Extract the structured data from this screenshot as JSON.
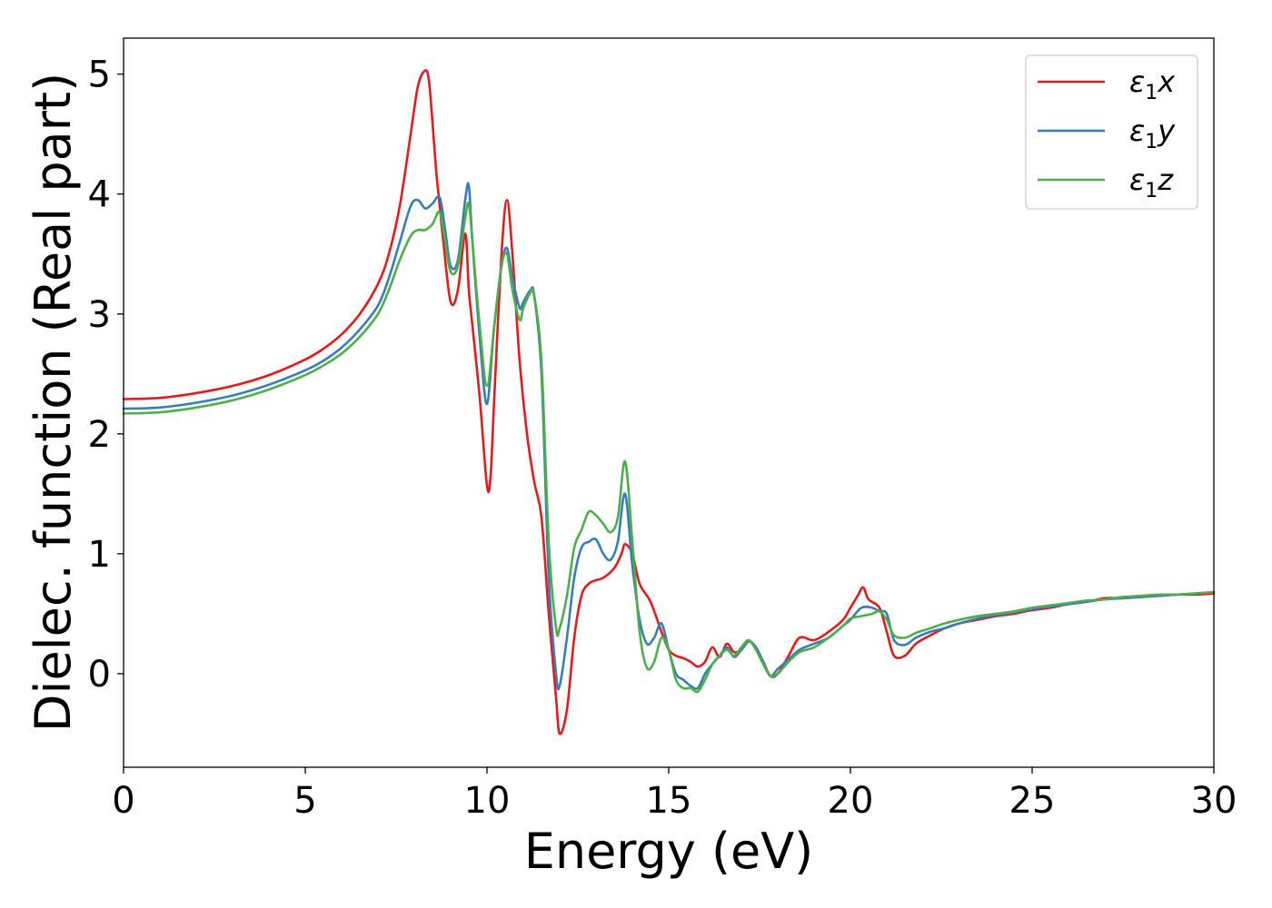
{
  "chart_data": {
    "type": "line",
    "title": "",
    "xlabel": "Energy (eV)",
    "ylabel": "Dielec. function (Real part)",
    "xlim": [
      0,
      30
    ],
    "ylim": [
      -0.78,
      5.3
    ],
    "xticks": [
      0,
      5,
      10,
      15,
      20,
      25,
      30
    ],
    "yticks": [
      0,
      1,
      2,
      3,
      4,
      5
    ],
    "xtick_labels": [
      "0",
      "5",
      "10",
      "15",
      "20",
      "25",
      "30"
    ],
    "ytick_labels": [
      "0",
      "1",
      "2",
      "3",
      "4",
      "5"
    ],
    "grid": false,
    "legend_position": "top-right",
    "series": [
      {
        "name": "ε₁x",
        "legend_main": "ε",
        "legend_sub": "1",
        "legend_tail": "x",
        "color": "#e41a1c",
        "x": [
          0,
          1,
          2,
          3,
          4,
          5,
          5.5,
          6,
          6.5,
          7,
          7.3,
          7.6,
          7.9,
          8.1,
          8.3,
          8.4,
          8.5,
          8.6,
          8.7,
          8.8,
          9.0,
          9.2,
          9.4,
          9.5,
          9.6,
          9.8,
          10.0,
          10.1,
          10.2,
          10.4,
          10.55,
          10.7,
          10.9,
          11.1,
          11.3,
          11.5,
          11.7,
          11.9,
          12.0,
          12.2,
          12.4,
          12.6,
          12.8,
          13.0,
          13.2,
          13.5,
          13.7,
          13.8,
          14.0,
          14.2,
          14.5,
          14.8,
          15.0,
          15.2,
          15.4,
          15.6,
          15.8,
          16.0,
          16.2,
          16.4,
          16.6,
          16.8,
          17.0,
          17.2,
          17.4,
          17.6,
          17.8,
          18.0,
          18.3,
          18.6,
          19.0,
          19.4,
          19.8,
          20.0,
          20.2,
          20.35,
          20.5,
          20.8,
          21.0,
          21.2,
          21.5,
          21.8,
          22.2,
          22.6,
          23.0,
          23.5,
          24.0,
          24.5,
          25.0,
          25.5,
          26.0,
          26.5,
          27.0,
          27.5,
          28.0,
          28.5,
          29.0,
          29.5,
          30.0
        ],
        "y": [
          2.29,
          2.3,
          2.34,
          2.4,
          2.49,
          2.62,
          2.71,
          2.83,
          3.0,
          3.25,
          3.5,
          3.9,
          4.5,
          4.9,
          5.03,
          4.95,
          4.6,
          4.2,
          3.9,
          3.6,
          3.1,
          3.2,
          3.67,
          3.2,
          2.9,
          2.3,
          1.57,
          1.65,
          2.3,
          3.5,
          3.95,
          3.5,
          2.6,
          2.0,
          1.6,
          1.3,
          0.5,
          -0.2,
          -0.5,
          -0.3,
          0.3,
          0.65,
          0.75,
          0.78,
          0.8,
          0.88,
          1.0,
          1.08,
          1.0,
          0.75,
          0.6,
          0.35,
          0.2,
          0.15,
          0.13,
          0.1,
          0.06,
          0.1,
          0.22,
          0.14,
          0.25,
          0.18,
          0.2,
          0.27,
          0.22,
          0.1,
          -0.02,
          0.0,
          0.15,
          0.3,
          0.28,
          0.35,
          0.45,
          0.55,
          0.65,
          0.72,
          0.62,
          0.55,
          0.35,
          0.15,
          0.15,
          0.25,
          0.32,
          0.38,
          0.42,
          0.45,
          0.48,
          0.5,
          0.53,
          0.55,
          0.58,
          0.6,
          0.63,
          0.63,
          0.64,
          0.65,
          0.66,
          0.66,
          0.67
        ]
      },
      {
        "name": "ε₁y",
        "legend_main": "ε",
        "legend_sub": "1",
        "legend_tail": "y",
        "color": "#377eb8",
        "x": [
          0,
          1,
          2,
          3,
          4,
          5,
          5.5,
          6,
          6.5,
          7,
          7.3,
          7.6,
          7.9,
          8.1,
          8.3,
          8.5,
          8.7,
          8.85,
          9.0,
          9.2,
          9.4,
          9.5,
          9.6,
          9.8,
          10.0,
          10.2,
          10.4,
          10.55,
          10.7,
          10.9,
          11.0,
          11.2,
          11.3,
          11.5,
          11.7,
          11.9,
          12.0,
          12.2,
          12.4,
          12.6,
          12.8,
          13.0,
          13.2,
          13.4,
          13.6,
          13.8,
          14.0,
          14.2,
          14.4,
          14.6,
          14.8,
          15.0,
          15.2,
          15.4,
          15.6,
          15.8,
          16.0,
          16.2,
          16.4,
          16.6,
          16.8,
          17.0,
          17.2,
          17.4,
          17.6,
          17.8,
          18.0,
          18.3,
          18.6,
          19.0,
          19.4,
          19.8,
          20.0,
          20.3,
          20.6,
          20.8,
          21.0,
          21.2,
          21.5,
          21.8,
          22.2,
          22.6,
          23.0,
          23.5,
          24.0,
          24.5,
          25.0,
          25.5,
          26.0,
          26.5,
          27.0,
          27.5,
          28.0,
          28.5,
          29.0,
          29.5,
          30.0
        ],
        "y": [
          2.21,
          2.22,
          2.26,
          2.32,
          2.41,
          2.53,
          2.61,
          2.72,
          2.87,
          3.07,
          3.3,
          3.6,
          3.9,
          3.95,
          3.88,
          3.92,
          3.97,
          3.7,
          3.4,
          3.45,
          3.95,
          4.07,
          3.6,
          2.8,
          2.25,
          2.9,
          3.4,
          3.55,
          3.3,
          3.05,
          3.1,
          3.2,
          3.15,
          2.5,
          0.8,
          0.0,
          -0.1,
          0.3,
          0.8,
          1.05,
          1.1,
          1.12,
          1.0,
          0.95,
          1.1,
          1.5,
          0.9,
          0.45,
          0.25,
          0.3,
          0.42,
          0.2,
          0.0,
          -0.05,
          -0.1,
          -0.12,
          0.0,
          0.08,
          0.15,
          0.22,
          0.14,
          0.2,
          0.27,
          0.22,
          0.1,
          -0.02,
          0.04,
          0.12,
          0.2,
          0.25,
          0.3,
          0.4,
          0.45,
          0.55,
          0.55,
          0.52,
          0.5,
          0.28,
          0.24,
          0.3,
          0.35,
          0.38,
          0.42,
          0.46,
          0.49,
          0.51,
          0.54,
          0.56,
          0.58,
          0.6,
          0.62,
          0.63,
          0.64,
          0.65,
          0.66,
          0.67,
          0.68
        ]
      },
      {
        "name": "ε₁z",
        "legend_main": "ε",
        "legend_sub": "1",
        "legend_tail": "z",
        "color": "#4daf4a",
        "x": [
          0,
          1,
          2,
          3,
          4,
          5,
          5.5,
          6,
          6.5,
          7,
          7.3,
          7.6,
          7.9,
          8.1,
          8.3,
          8.5,
          8.7,
          8.85,
          9.0,
          9.2,
          9.4,
          9.5,
          9.6,
          9.8,
          10.0,
          10.2,
          10.4,
          10.55,
          10.7,
          10.9,
          11.0,
          11.2,
          11.3,
          11.5,
          11.7,
          11.9,
          12.0,
          12.2,
          12.4,
          12.6,
          12.8,
          13.0,
          13.2,
          13.4,
          13.6,
          13.8,
          14.0,
          14.2,
          14.4,
          14.6,
          14.8,
          15.0,
          15.2,
          15.4,
          15.6,
          15.8,
          16.0,
          16.2,
          16.4,
          16.6,
          16.8,
          17.0,
          17.2,
          17.4,
          17.6,
          17.8,
          18.0,
          18.3,
          18.6,
          19.0,
          19.4,
          19.8,
          20.0,
          20.3,
          20.6,
          20.8,
          21.0,
          21.2,
          21.5,
          21.8,
          22.2,
          22.6,
          23.0,
          23.5,
          24.0,
          24.5,
          25.0,
          25.5,
          26.0,
          26.5,
          27.0,
          27.5,
          28.0,
          28.5,
          29.0,
          29.5,
          30.0
        ],
        "y": [
          2.17,
          2.18,
          2.22,
          2.28,
          2.37,
          2.49,
          2.57,
          2.67,
          2.81,
          3.0,
          3.2,
          3.45,
          3.65,
          3.7,
          3.7,
          3.75,
          3.85,
          3.6,
          3.35,
          3.4,
          3.8,
          3.92,
          3.6,
          2.9,
          2.4,
          2.9,
          3.4,
          3.5,
          3.2,
          2.95,
          3.05,
          3.18,
          3.15,
          2.6,
          1.1,
          0.38,
          0.38,
          0.65,
          1.05,
          1.2,
          1.35,
          1.32,
          1.25,
          1.18,
          1.3,
          1.77,
          1.1,
          0.35,
          0.05,
          0.1,
          0.3,
          0.2,
          -0.05,
          -0.12,
          -0.12,
          -0.15,
          -0.05,
          0.08,
          0.15,
          0.2,
          0.15,
          0.22,
          0.28,
          0.2,
          0.08,
          -0.02,
          0.0,
          0.1,
          0.18,
          0.22,
          0.3,
          0.4,
          0.46,
          0.48,
          0.5,
          0.52,
          0.45,
          0.32,
          0.3,
          0.34,
          0.38,
          0.42,
          0.45,
          0.48,
          0.5,
          0.52,
          0.55,
          0.57,
          0.59,
          0.61,
          0.62,
          0.64,
          0.65,
          0.66,
          0.66,
          0.67,
          0.68
        ]
      }
    ]
  }
}
